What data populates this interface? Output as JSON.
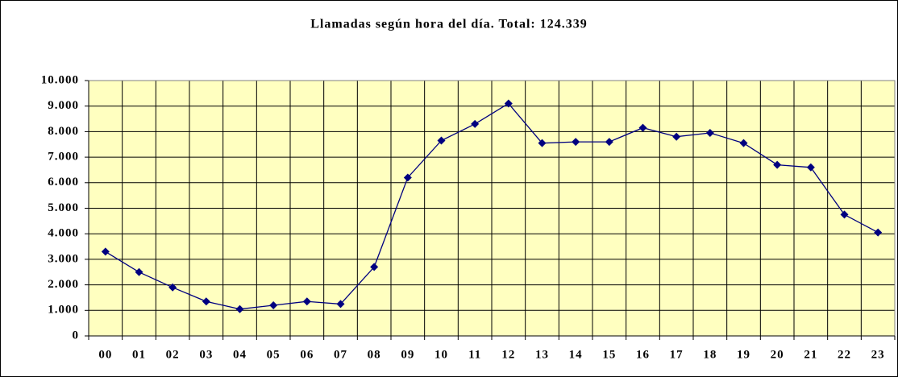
{
  "chart_data": {
    "type": "line",
    "title": "Llamadas según hora del día. Total: 124.339",
    "categories": [
      "00",
      "01",
      "02",
      "03",
      "04",
      "05",
      "06",
      "07",
      "08",
      "09",
      "10",
      "11",
      "12",
      "13",
      "14",
      "15",
      "16",
      "17",
      "18",
      "19",
      "20",
      "21",
      "22",
      "23"
    ],
    "series": [
      {
        "name": "Llamadas",
        "color": "#000080",
        "values": [
          3300,
          2500,
          1900,
          1350,
          1050,
          1200,
          1350,
          1250,
          2700,
          6200,
          7650,
          8300,
          9100,
          7550,
          7600,
          7600,
          8150,
          7800,
          7950,
          7550,
          6700,
          6600,
          4750,
          4050
        ]
      }
    ],
    "ylim": [
      0,
      10000
    ],
    "yticks": [
      0,
      {
        "value": 1000,
        "label": "1.000"
      },
      {
        "value": 2000,
        "label": "2.000"
      },
      {
        "value": 3000,
        "label": "3.000"
      },
      {
        "value": 4000,
        "label": "4.000"
      },
      {
        "value": 5000,
        "label": "5.000"
      },
      {
        "value": 6000,
        "label": "6.000"
      },
      {
        "value": 7000,
        "label": "7.000"
      },
      {
        "value": 8000,
        "label": "8.000"
      },
      {
        "value": 9000,
        "label": "9.000"
      },
      {
        "value": 10000,
        "label": "10.000"
      }
    ],
    "grid": true,
    "plot_background": "#ffffc0"
  }
}
